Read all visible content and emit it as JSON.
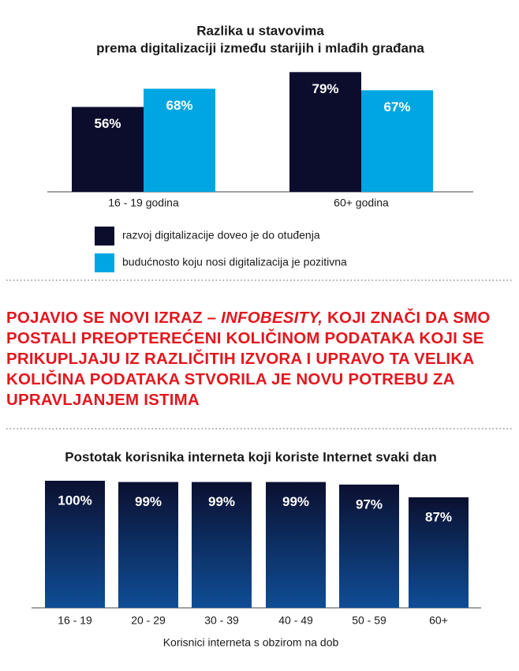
{
  "chart_data": [
    {
      "type": "bar",
      "title": "Razlika u stavovima",
      "subtitle": "prema digitalizaciji između starijih i mlađih građana",
      "categories": [
        "16 - 19 godina",
        "60+ godina"
      ],
      "series": [
        {
          "name": "razvoj digitalizacije doveo je do otuđenja",
          "color": "#0c0c2c",
          "values": [
            56,
            79
          ],
          "value_labels": [
            "56%",
            "79%"
          ]
        },
        {
          "name": "budućnosto koju nosi digitalizacija je pozitivna",
          "color": "#00a6e2",
          "values": [
            68,
            67
          ],
          "value_labels": [
            "68%",
            "67%"
          ]
        }
      ]
    },
    {
      "type": "bar",
      "title": "Postotak korisnika interneta koji koriste Internet svaki dan",
      "x_label": "Korisnici interneta s obzirom na dob",
      "categories": [
        "16 - 19",
        "20 - 29",
        "30 - 39",
        "40 - 49",
        "50 - 59",
        "60+"
      ],
      "values": [
        100,
        99,
        99,
        99,
        97,
        87
      ],
      "value_labels": [
        "100%",
        "99%",
        "99%",
        "99%",
        "97%",
        "87%"
      ],
      "color": [
        "#0b1030",
        "#0f4d96"
      ]
    }
  ],
  "callout": {
    "parts": [
      "POJAVIO SE NOVI IZRAZ – ",
      "INFOBESITY,",
      " KOJI ZNAČI DA SMO POSTALI PREOPTEREĆENI KOLIČINOM PODATAKA KOJI SE PRIKUPLJAJU IZ RAZLIČITIH IZVORA I UPRAVO TA VELIKA KOLIČINA PODATAKA STVORILA JE NOVU POTREBU ZA UPRAVLJANJEM ISTIMA"
    ]
  }
}
